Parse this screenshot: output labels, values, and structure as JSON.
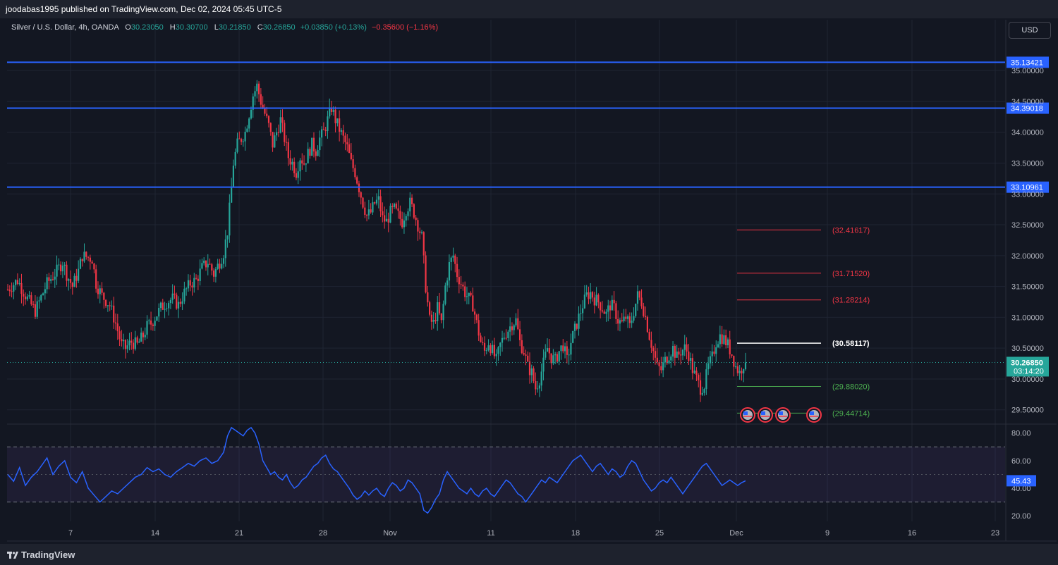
{
  "header": {
    "published": "joodabas1995 published on TradingView.com, Dec 02, 2024 05:45 UTC-5"
  },
  "legend": {
    "symbol": "Silver / U.S. Dollar, 4h, OANDA",
    "open_label": "O",
    "open": "30.23050",
    "high_label": "H",
    "high": "30.30700",
    "low_label": "L",
    "low": "30.21850",
    "close_label": "C",
    "close": "30.26850",
    "change": "+0.03850 (+0.13%)",
    "change2": "−0.35600 (−1.16%)"
  },
  "currency_button": "USD",
  "footer": {
    "brand": "TradingView"
  },
  "colors": {
    "background": "#131722",
    "up": "#26a69a",
    "down": "#f23645",
    "level_line": "#2962ff",
    "rsi_line": "#2962ff",
    "resistance": "#f23645",
    "support": "#4caf50",
    "pivot": "#ffffff"
  },
  "chart_data": [
    {
      "type": "candlestick",
      "title": "Silver / U.S. Dollar, 4h, OANDA",
      "y_axis_ticks": [
        "35.00000",
        "34.50000",
        "34.00000",
        "33.50000",
        "33.00000",
        "32.50000",
        "32.00000",
        "31.50000",
        "31.00000",
        "30.50000",
        "30.00000",
        "29.50000"
      ],
      "x_axis_ticks": [
        "7",
        "14",
        "21",
        "28",
        "Nov",
        "11",
        "18",
        "25",
        "Dec",
        "9",
        "16",
        "23"
      ],
      "ylim": [
        29.28,
        35.55
      ],
      "grid": true,
      "last_price": 30.2685,
      "last_price_label": "30.26850",
      "countdown": "03:14:20",
      "horizontal_levels": [
        {
          "value": 35.13421,
          "label": "35.13421"
        },
        {
          "value": 34.39018,
          "label": "34.39018"
        },
        {
          "value": 33.10961,
          "label": "33.10961"
        }
      ],
      "target_levels": [
        {
          "value": 32.41617,
          "label": "(32.41617)",
          "kind": "resistance"
        },
        {
          "value": 31.7152,
          "label": "(31.71520)",
          "kind": "resistance"
        },
        {
          "value": 31.28214,
          "label": "(31.28214)",
          "kind": "resistance"
        },
        {
          "value": 30.58117,
          "label": "(30.58117)",
          "kind": "pivot"
        },
        {
          "value": 29.8802,
          "label": "(29.88020)",
          "kind": "support"
        },
        {
          "value": 29.44714,
          "label": "(29.44714)",
          "kind": "support"
        }
      ],
      "event_markers": 4,
      "price_path": [
        [
          0,
          31.45
        ],
        [
          5,
          31.6
        ],
        [
          10,
          31.3
        ],
        [
          14,
          31.1
        ],
        [
          20,
          31.55
        ],
        [
          25,
          31.75
        ],
        [
          28,
          31.9
        ],
        [
          30,
          31.7
        ],
        [
          33,
          31.5
        ],
        [
          36,
          31.75
        ],
        [
          38,
          32.0
        ],
        [
          43,
          31.95
        ],
        [
          45,
          31.55
        ],
        [
          48,
          31.35
        ],
        [
          52,
          31.2
        ],
        [
          55,
          30.9
        ],
        [
          58,
          30.55
        ],
        [
          60,
          30.5
        ],
        [
          63,
          30.6
        ],
        [
          66,
          30.55
        ],
        [
          69,
          30.7
        ],
        [
          71,
          30.85
        ],
        [
          73,
          30.9
        ],
        [
          76,
          31.05
        ],
        [
          78,
          31.15
        ],
        [
          81,
          31.25
        ],
        [
          84,
          31.3
        ],
        [
          87,
          31.2
        ],
        [
          90,
          31.4
        ],
        [
          93,
          31.55
        ],
        [
          96,
          31.6
        ],
        [
          99,
          31.8
        ],
        [
          102,
          31.9
        ],
        [
          105,
          31.7
        ],
        [
          108,
          31.9
        ],
        [
          110,
          32.05
        ],
        [
          112,
          32.4
        ],
        [
          114,
          33.1
        ],
        [
          115,
          33.5
        ],
        [
          117,
          33.8
        ],
        [
          119,
          33.9
        ],
        [
          121,
          34.0
        ],
        [
          123,
          34.3
        ],
        [
          125,
          34.6
        ],
        [
          127,
          34.75
        ],
        [
          129,
          34.5
        ],
        [
          131,
          34.3
        ],
        [
          133,
          34.1
        ],
        [
          135,
          33.8
        ],
        [
          137,
          34.0
        ],
        [
          139,
          34.2
        ],
        [
          141,
          33.9
        ],
        [
          143,
          33.6
        ],
        [
          145,
          33.5
        ],
        [
          147,
          33.35
        ],
        [
          149,
          33.6
        ],
        [
          151,
          33.5
        ],
        [
          153,
          33.65
        ],
        [
          155,
          33.8
        ],
        [
          157,
          33.7
        ],
        [
          159,
          33.9
        ],
        [
          161,
          34.0
        ],
        [
          163,
          34.2
        ],
        [
          165,
          34.4
        ],
        [
          167,
          34.2
        ],
        [
          169,
          34.05
        ],
        [
          171,
          33.9
        ],
        [
          173,
          33.75
        ],
        [
          175,
          33.5
        ],
        [
          177,
          33.35
        ],
        [
          179,
          33.1
        ],
        [
          181,
          32.85
        ],
        [
          183,
          32.65
        ],
        [
          185,
          32.7
        ],
        [
          187,
          32.85
        ],
        [
          189,
          32.9
        ],
        [
          191,
          32.6
        ],
        [
          193,
          32.55
        ],
        [
          195,
          32.7
        ],
        [
          197,
          32.75
        ],
        [
          199,
          32.65
        ],
        [
          201,
          32.55
        ],
        [
          203,
          32.75
        ],
        [
          205,
          32.85
        ],
        [
          207,
          32.7
        ],
        [
          209,
          32.5
        ],
        [
          211,
          32.3
        ],
        [
          213,
          31.5
        ],
        [
          215,
          30.95
        ],
        [
          217,
          30.9
        ],
        [
          219,
          31.15
        ],
        [
          221,
          30.9
        ],
        [
          223,
          31.5
        ],
        [
          225,
          31.85
        ],
        [
          227,
          32.0
        ],
        [
          229,
          31.7
        ],
        [
          231,
          31.55
        ],
        [
          233,
          31.4
        ],
        [
          235,
          31.3
        ],
        [
          237,
          31.2
        ],
        [
          239,
          30.9
        ],
        [
          241,
          30.6
        ],
        [
          243,
          30.45
        ],
        [
          245,
          30.6
        ],
        [
          247,
          30.45
        ],
        [
          249,
          30.3
        ],
        [
          251,
          30.55
        ],
        [
          253,
          30.7
        ],
        [
          255,
          30.8
        ],
        [
          257,
          30.9
        ],
        [
          259,
          30.95
        ],
        [
          261,
          30.6
        ],
        [
          263,
          30.45
        ],
        [
          265,
          30.2
        ],
        [
          267,
          30.1
        ],
        [
          269,
          29.85
        ],
        [
          271,
          30.0
        ],
        [
          273,
          30.25
        ],
        [
          275,
          30.5
        ],
        [
          277,
          30.35
        ],
        [
          279,
          30.3
        ],
        [
          281,
          30.45
        ],
        [
          283,
          30.55
        ],
        [
          285,
          30.3
        ],
        [
          287,
          30.6
        ],
        [
          289,
          30.8
        ],
        [
          291,
          31.0
        ],
        [
          293,
          31.2
        ],
        [
          295,
          31.35
        ],
        [
          297,
          31.4
        ],
        [
          299,
          31.3
        ],
        [
          301,
          31.25
        ],
        [
          303,
          31.15
        ],
        [
          305,
          31.05
        ],
        [
          307,
          31.2
        ],
        [
          309,
          31.15
        ],
        [
          311,
          30.95
        ],
        [
          313,
          30.9
        ],
        [
          315,
          31.0
        ],
        [
          317,
          30.85
        ],
        [
          319,
          31.1
        ],
        [
          321,
          31.35
        ],
        [
          323,
          31.25
        ],
        [
          325,
          31.0
        ],
        [
          327,
          30.7
        ],
        [
          329,
          30.45
        ],
        [
          331,
          30.2
        ],
        [
          333,
          30.15
        ],
        [
          335,
          30.3
        ],
        [
          337,
          30.4
        ],
        [
          339,
          30.5
        ],
        [
          341,
          30.35
        ],
        [
          343,
          30.45
        ],
        [
          345,
          30.5
        ],
        [
          347,
          30.4
        ],
        [
          349,
          30.15
        ],
        [
          351,
          30.0
        ],
        [
          353,
          29.85
        ],
        [
          355,
          29.9
        ],
        [
          357,
          30.2
        ],
        [
          359,
          30.35
        ],
        [
          361,
          30.6
        ],
        [
          363,
          30.7
        ],
        [
          365,
          30.65
        ],
        [
          367,
          30.55
        ],
        [
          369,
          30.4
        ],
        [
          371,
          30.2
        ],
        [
          373,
          30.1
        ],
        [
          375,
          30.25
        ],
        [
          376,
          30.27
        ]
      ]
    },
    {
      "type": "line",
      "title": "RSI",
      "y_axis_ticks": [
        "80.00",
        "60.00",
        "40.00",
        "20.00"
      ],
      "ylim": [
        16,
        86
      ],
      "bands": [
        70,
        30
      ],
      "midline": 50,
      "last_value": 45.43,
      "last_value_label": "45.43",
      "values": [
        [
          0,
          50
        ],
        [
          3,
          45
        ],
        [
          6,
          55
        ],
        [
          9,
          42
        ],
        [
          12,
          48
        ],
        [
          15,
          52
        ],
        [
          18,
          58
        ],
        [
          20,
          62
        ],
        [
          23,
          50
        ],
        [
          26,
          56
        ],
        [
          29,
          60
        ],
        [
          32,
          48
        ],
        [
          35,
          44
        ],
        [
          38,
          52
        ],
        [
          41,
          40
        ],
        [
          44,
          35
        ],
        [
          47,
          30
        ],
        [
          50,
          34
        ],
        [
          53,
          38
        ],
        [
          56,
          36
        ],
        [
          59,
          40
        ],
        [
          62,
          44
        ],
        [
          65,
          48
        ],
        [
          68,
          50
        ],
        [
          71,
          55
        ],
        [
          74,
          52
        ],
        [
          77,
          54
        ],
        [
          80,
          50
        ],
        [
          83,
          48
        ],
        [
          86,
          52
        ],
        [
          89,
          55
        ],
        [
          92,
          58
        ],
        [
          95,
          56
        ],
        [
          98,
          60
        ],
        [
          101,
          62
        ],
        [
          104,
          58
        ],
        [
          107,
          60
        ],
        [
          110,
          66
        ],
        [
          112,
          78
        ],
        [
          114,
          84
        ],
        [
          116,
          82
        ],
        [
          118,
          80
        ],
        [
          120,
          78
        ],
        [
          122,
          82
        ],
        [
          124,
          84
        ],
        [
          126,
          80
        ],
        [
          128,
          72
        ],
        [
          130,
          60
        ],
        [
          132,
          55
        ],
        [
          134,
          50
        ],
        [
          136,
          52
        ],
        [
          138,
          48
        ],
        [
          140,
          46
        ],
        [
          142,
          50
        ],
        [
          144,
          44
        ],
        [
          146,
          40
        ],
        [
          148,
          42
        ],
        [
          150,
          46
        ],
        [
          152,
          48
        ],
        [
          154,
          52
        ],
        [
          156,
          56
        ],
        [
          158,
          58
        ],
        [
          160,
          62
        ],
        [
          162,
          64
        ],
        [
          164,
          58
        ],
        [
          166,
          54
        ],
        [
          168,
          52
        ],
        [
          170,
          48
        ],
        [
          172,
          44
        ],
        [
          174,
          40
        ],
        [
          176,
          35
        ],
        [
          178,
          32
        ],
        [
          180,
          34
        ],
        [
          182,
          38
        ],
        [
          184,
          35
        ],
        [
          186,
          38
        ],
        [
          188,
          40
        ],
        [
          190,
          36
        ],
        [
          192,
          34
        ],
        [
          194,
          40
        ],
        [
          196,
          44
        ],
        [
          198,
          42
        ],
        [
          200,
          38
        ],
        [
          202,
          40
        ],
        [
          204,
          46
        ],
        [
          206,
          44
        ],
        [
          208,
          40
        ],
        [
          210,
          36
        ],
        [
          212,
          24
        ],
        [
          214,
          22
        ],
        [
          216,
          26
        ],
        [
          218,
          32
        ],
        [
          220,
          36
        ],
        [
          222,
          46
        ],
        [
          224,
          52
        ],
        [
          226,
          48
        ],
        [
          228,
          44
        ],
        [
          230,
          40
        ],
        [
          232,
          38
        ],
        [
          234,
          36
        ],
        [
          236,
          40
        ],
        [
          238,
          36
        ],
        [
          240,
          34
        ],
        [
          242,
          38
        ],
        [
          244,
          40
        ],
        [
          246,
          36
        ],
        [
          248,
          34
        ],
        [
          250,
          38
        ],
        [
          252,
          42
        ],
        [
          254,
          46
        ],
        [
          256,
          44
        ],
        [
          258,
          40
        ],
        [
          260,
          36
        ],
        [
          262,
          34
        ],
        [
          264,
          30
        ],
        [
          266,
          34
        ],
        [
          268,
          38
        ],
        [
          270,
          42
        ],
        [
          272,
          46
        ],
        [
          274,
          44
        ],
        [
          276,
          48
        ],
        [
          278,
          46
        ],
        [
          280,
          44
        ],
        [
          282,
          48
        ],
        [
          284,
          52
        ],
        [
          286,
          56
        ],
        [
          288,
          60
        ],
        [
          290,
          62
        ],
        [
          292,
          64
        ],
        [
          294,
          60
        ],
        [
          296,
          56
        ],
        [
          298,
          52
        ],
        [
          300,
          56
        ],
        [
          302,
          58
        ],
        [
          304,
          54
        ],
        [
          306,
          50
        ],
        [
          308,
          54
        ],
        [
          310,
          52
        ],
        [
          312,
          48
        ],
        [
          314,
          50
        ],
        [
          316,
          56
        ],
        [
          318,
          60
        ],
        [
          320,
          58
        ],
        [
          322,
          52
        ],
        [
          324,
          46
        ],
        [
          326,
          42
        ],
        [
          328,
          38
        ],
        [
          330,
          40
        ],
        [
          332,
          44
        ],
        [
          334,
          46
        ],
        [
          336,
          44
        ],
        [
          338,
          48
        ],
        [
          340,
          44
        ],
        [
          342,
          40
        ],
        [
          344,
          36
        ],
        [
          346,
          40
        ],
        [
          348,
          44
        ],
        [
          350,
          48
        ],
        [
          352,
          52
        ],
        [
          354,
          56
        ],
        [
          356,
          58
        ],
        [
          358,
          54
        ],
        [
          360,
          50
        ],
        [
          362,
          46
        ],
        [
          364,
          42
        ],
        [
          366,
          44
        ],
        [
          368,
          46
        ],
        [
          370,
          44
        ],
        [
          372,
          42
        ],
        [
          374,
          44
        ],
        [
          376,
          45.43
        ]
      ]
    }
  ]
}
